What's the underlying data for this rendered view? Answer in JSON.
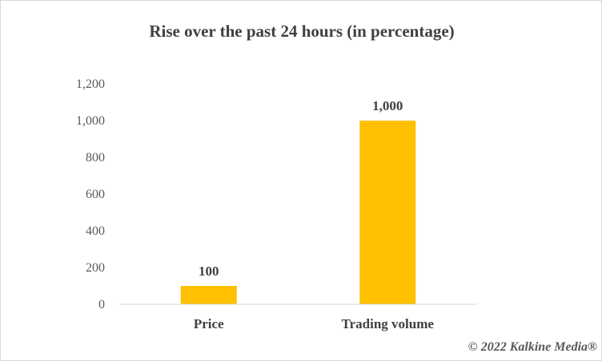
{
  "chart_data": {
    "type": "bar",
    "title": "Rise over the past 24 hours (in percentage)",
    "categories": [
      "Price",
      "Trading volume"
    ],
    "values": [
      100,
      1000
    ],
    "value_labels": [
      "100",
      "1,000"
    ],
    "ylim": [
      0,
      1200
    ],
    "y_ticks": [
      0,
      200,
      400,
      600,
      800,
      1000,
      1200
    ],
    "y_tick_labels": [
      "0",
      "200",
      "400",
      "600",
      "800",
      "1,000",
      "1,200"
    ],
    "xlabel": "",
    "ylabel": "",
    "grid": false,
    "legend": "none",
    "bar_color": "#FFC000",
    "axis_color": "#d9d9d9"
  },
  "copyright": "© 2022 Kalkine Media®"
}
